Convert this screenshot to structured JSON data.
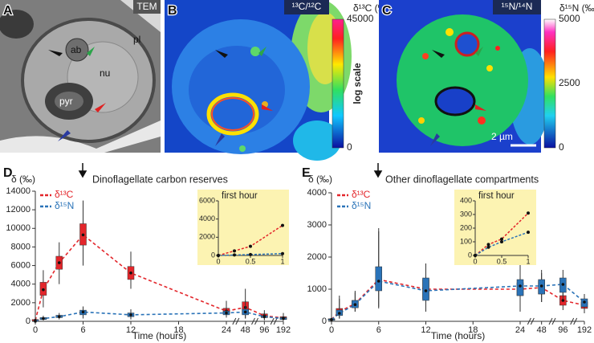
{
  "panels": [
    {
      "letter": "A",
      "tag": "TEM",
      "labels": [
        "ab",
        "pl",
        "nu",
        "pyr"
      ]
    },
    {
      "letter": "B",
      "tag": "¹³C/¹²C",
      "scale_title": "δ¹³C (‰)",
      "scale_ticks": [
        0,
        45000
      ],
      "scale_note": "log scale"
    },
    {
      "letter": "C",
      "tag": "¹⁵N/¹⁴N",
      "scale_title": "δ¹⁵N (‰)",
      "scale_ticks": [
        0,
        2500,
        5000
      ],
      "scale_bar": "2 µm"
    }
  ],
  "chart_data": [
    {
      "type": "box",
      "letter": "D",
      "title": "Dinoflagellate carbon reserves",
      "ylabel": "δ (‰)",
      "xlabel": "Time (hours)",
      "x": [
        0,
        1,
        3,
        6,
        12,
        24,
        48,
        96,
        192
      ],
      "xlim": [
        0,
        192
      ],
      "xticks": [
        0,
        6,
        12,
        18,
        24,
        48,
        96,
        192
      ],
      "ylim": [
        0,
        14000
      ],
      "yticks": [
        0,
        2000,
        4000,
        6000,
        8000,
        10000,
        12000,
        14000
      ],
      "series": [
        {
          "name": "δ¹³C",
          "color": "#e3262b",
          "values": [
            100,
            3400,
            6300,
            9300,
            5200,
            1100,
            1500,
            600,
            350
          ],
          "q1": [
            50,
            2800,
            5600,
            8200,
            4500,
            800,
            800,
            400,
            200
          ],
          "q3": [
            200,
            4200,
            7000,
            10500,
            5900,
            1400,
            2100,
            800,
            500
          ],
          "low": [
            0,
            1500,
            4000,
            6000,
            3500,
            400,
            300,
            100,
            50
          ],
          "high": [
            500,
            5500,
            8500,
            13000,
            7500,
            2200,
            3500,
            1200,
            900
          ]
        },
        {
          "name": "δ¹⁵N",
          "color": "#2a73b8",
          "values": [
            0,
            300,
            500,
            1000,
            700,
            900,
            1000,
            500,
            300
          ],
          "q1": [
            0,
            200,
            400,
            700,
            500,
            700,
            700,
            400,
            200
          ],
          "q3": [
            0,
            400,
            650,
            1200,
            900,
            1100,
            1300,
            600,
            400
          ],
          "low": [
            0,
            100,
            200,
            300,
            200,
            500,
            300,
            200,
            100
          ],
          "high": [
            0,
            600,
            900,
            1600,
            1300,
            1500,
            2200,
            900,
            600
          ]
        }
      ],
      "inset": {
        "title": "first hour",
        "x": [
          0,
          0.25,
          0.5,
          1
        ],
        "xlim": [
          0,
          1
        ],
        "xticks": [
          0,
          0.5,
          1
        ],
        "ylim": [
          0,
          6000
        ],
        "yticks": [
          0,
          2000,
          4000,
          6000
        ],
        "series": [
          {
            "values": [
              0,
              500,
              1000,
              3300
            ]
          },
          {
            "values": [
              0,
              50,
              100,
              200
            ]
          }
        ]
      }
    },
    {
      "type": "box",
      "letter": "E",
      "title": "Other dinoflagellate compartments",
      "ylabel": "δ (‰)",
      "xlabel": "Time (hours)",
      "x": [
        0,
        1,
        3,
        6,
        12,
        24,
        48,
        96,
        192
      ],
      "xlim": [
        0,
        192
      ],
      "xticks": [
        0,
        6,
        12,
        18,
        24,
        48,
        96,
        192
      ],
      "ylim": [
        0,
        4000
      ],
      "yticks": [
        0,
        1000,
        2000,
        3000,
        4000
      ],
      "series": [
        {
          "name": "δ¹³C",
          "color": "#e3262b",
          "values": [
            60,
            300,
            550,
            1300,
            1000,
            1000,
            1050,
            650,
            500
          ],
          "q1": [
            40,
            200,
            450,
            1000,
            700,
            800,
            850,
            500,
            400
          ],
          "q3": [
            80,
            400,
            650,
            1600,
            1300,
            1200,
            1250,
            800,
            600
          ],
          "low": [
            20,
            100,
            300,
            400,
            300,
            400,
            600,
            350,
            250
          ],
          "high": [
            120,
            800,
            900,
            2800,
            1700,
            1600,
            1500,
            1000,
            750
          ]
        },
        {
          "name": "δ¹⁵N",
          "color": "#2a73b8",
          "values": [
            50,
            250,
            520,
            1250,
            950,
            1100,
            1100,
            1150,
            600
          ],
          "q1": [
            30,
            180,
            420,
            950,
            650,
            800,
            850,
            900,
            450
          ],
          "q3": [
            70,
            350,
            650,
            1700,
            1350,
            1300,
            1300,
            1350,
            700
          ],
          "low": [
            10,
            80,
            300,
            450,
            300,
            300,
            600,
            700,
            300
          ],
          "high": [
            100,
            700,
            950,
            2900,
            1800,
            1900,
            1600,
            1600,
            850
          ]
        }
      ],
      "inset": {
        "title": "first hour",
        "x": [
          0,
          0.25,
          0.5,
          1
        ],
        "xlim": [
          0,
          1
        ],
        "xticks": [
          0,
          0.5,
          1
        ],
        "ylim": [
          0,
          400
        ],
        "yticks": [
          0,
          100,
          200,
          300,
          400
        ],
        "series": [
          {
            "values": [
              0,
              80,
              120,
              310
            ]
          },
          {
            "values": [
              0,
              60,
              100,
              170
            ]
          }
        ]
      }
    }
  ]
}
